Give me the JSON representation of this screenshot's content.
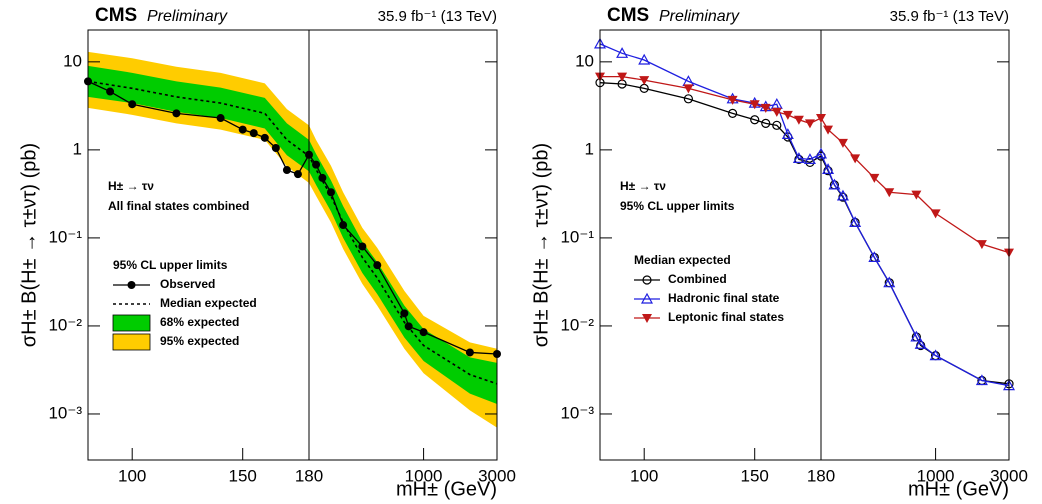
{
  "chart_data": [
    {
      "type": "line",
      "label": "CMS",
      "sublabel": "Preliminary",
      "lumi": "35.9 fb⁻¹ (13 TeV)",
      "ylabel": "σH± B(H± → τ±ντ) (pb)",
      "xlabel": "mH± (GeV)",
      "annotations": [
        "H± → τν",
        "All final states combined"
      ],
      "legend_title": "95% CL upper limits",
      "xlim": [
        80,
        3000
      ],
      "xbreak": 180,
      "xscale": "linear-log",
      "xticks": [
        100,
        150,
        180,
        1000,
        3000
      ],
      "ylim": [
        0.0003,
        23
      ],
      "yscale": "log",
      "yticks": [
        {
          "value": 0.001,
          "label": "10⁻³"
        },
        {
          "value": 0.01,
          "label": "10⁻²"
        },
        {
          "value": 0.1,
          "label": "10⁻¹"
        },
        1,
        10
      ],
      "series": [
        {
          "name": "Observed",
          "color": "#000000",
          "marker": "circle",
          "dash": false,
          "x": [
            80,
            90,
            100,
            120,
            140,
            150,
            155,
            160,
            165,
            170,
            175,
            180,
            200,
            220,
            250,
            300,
            400,
            500,
            750,
            800,
            1000,
            2000,
            3000
          ],
          "values": [
            6,
            4.6,
            3.3,
            2.6,
            2.3,
            1.7,
            1.55,
            1.37,
            1.05,
            0.59,
            0.53,
            0.88,
            0.68,
            0.48,
            0.33,
            0.14,
            0.08,
            0.049,
            0.0139,
            0.0099,
            0.0085,
            0.005,
            0.0048
          ]
        },
        {
          "name": "Median expected",
          "color": "#000000",
          "marker": "none",
          "dash": true,
          "x": [
            80,
            100,
            120,
            140,
            160,
            170,
            180,
            200,
            250,
            300,
            400,
            500,
            750,
            1000,
            2000,
            3000
          ],
          "values": [
            6,
            5,
            4,
            3.4,
            2.6,
            1.3,
            0.85,
            0.6,
            0.3,
            0.15,
            0.06,
            0.035,
            0.011,
            0.006,
            0.0028,
            0.0022
          ]
        }
      ],
      "bands": [
        {
          "name": "68% expected",
          "color": "#00cc00",
          "x": [
            80,
            100,
            120,
            140,
            160,
            170,
            180,
            200,
            250,
            300,
            400,
            500,
            750,
            1000,
            2000,
            3000
          ],
          "low": [
            4,
            3.4,
            2.7,
            2.3,
            1.75,
            0.87,
            0.57,
            0.4,
            0.2,
            0.1,
            0.04,
            0.023,
            0.0074,
            0.004,
            0.0017,
            0.0013
          ],
          "high": [
            9,
            7.5,
            6,
            5.1,
            3.9,
            2,
            1.3,
            0.9,
            0.45,
            0.23,
            0.09,
            0.053,
            0.017,
            0.0092,
            0.0044,
            0.0038
          ]
        },
        {
          "name": "95% expected",
          "color": "#ffcc00",
          "x": [
            80,
            100,
            120,
            140,
            160,
            170,
            180,
            200,
            250,
            300,
            400,
            500,
            750,
            1000,
            2000,
            3000
          ],
          "low": [
            3,
            2.5,
            2,
            1.7,
            1.3,
            0.65,
            0.42,
            0.3,
            0.15,
            0.075,
            0.03,
            0.017,
            0.0055,
            0.0029,
            0.0011,
            0.0007
          ],
          "high": [
            13,
            11,
            8.8,
            7.5,
            5.7,
            2.9,
            1.9,
            1.3,
            0.66,
            0.33,
            0.13,
            0.077,
            0.025,
            0.013,
            0.0065,
            0.0055
          ]
        }
      ]
    },
    {
      "type": "line",
      "label": "CMS",
      "sublabel": "Preliminary",
      "lumi": "35.9 fb⁻¹ (13 TeV)",
      "ylabel": "σH± B(H± → τ±ντ) (pb)",
      "xlabel": "mH± (GeV)",
      "annotations": [
        "H± → τν",
        "95% CL upper limits"
      ],
      "legend_title": "Median expected",
      "xlim": [
        80,
        3000
      ],
      "xbreak": 180,
      "xscale": "linear-log",
      "xticks": [
        100,
        150,
        180,
        1000,
        3000
      ],
      "ylim": [
        0.0003,
        23
      ],
      "yscale": "log",
      "yticks": [
        {
          "value": 0.001,
          "label": "10⁻³"
        },
        {
          "value": 0.01,
          "label": "10⁻²"
        },
        {
          "value": 0.1,
          "label": "10⁻¹"
        },
        1,
        10
      ],
      "series": [
        {
          "name": "Combined",
          "color": "#000000",
          "marker": "open-circle",
          "dash": false,
          "x": [
            80,
            90,
            100,
            120,
            140,
            150,
            155,
            160,
            165,
            170,
            175,
            180,
            200,
            220,
            250,
            300,
            400,
            500,
            750,
            800,
            1000,
            2000,
            3000
          ],
          "values": [
            5.8,
            5.6,
            5,
            3.8,
            2.6,
            2.2,
            2,
            1.9,
            1.4,
            0.78,
            0.72,
            0.85,
            0.58,
            0.4,
            0.29,
            0.15,
            0.06,
            0.031,
            0.0075,
            0.006,
            0.0046,
            0.0024,
            0.0022
          ]
        },
        {
          "name": "Hadronic final state",
          "color": "#1f1fe0",
          "marker": "open-triangle-up",
          "dash": false,
          "x": [
            80,
            90,
            100,
            120,
            140,
            150,
            155,
            160,
            165,
            170,
            175,
            180,
            200,
            220,
            250,
            300,
            400,
            500,
            750,
            800,
            1000,
            2000,
            3000
          ],
          "values": [
            16,
            12.5,
            10.5,
            6,
            3.8,
            3.4,
            3.1,
            3.3,
            1.5,
            0.8,
            0.78,
            0.9,
            0.6,
            0.4,
            0.3,
            0.15,
            0.06,
            0.031,
            0.0075,
            0.0062,
            0.0046,
            0.0024,
            0.0021
          ]
        },
        {
          "name": "Leptonic final states",
          "color": "#c01818",
          "marker": "triangle-down",
          "dash": false,
          "x": [
            80,
            90,
            100,
            120,
            140,
            150,
            155,
            160,
            165,
            170,
            175,
            180,
            200,
            250,
            300,
            400,
            500,
            750,
            1000,
            2000,
            3000
          ],
          "values": [
            6.8,
            6.8,
            6.2,
            5,
            3.7,
            3.3,
            3,
            2.7,
            2.5,
            2.2,
            2,
            2.3,
            1.7,
            1.2,
            0.8,
            0.48,
            0.33,
            0.31,
            0.19,
            0.085,
            0.068
          ]
        }
      ],
      "bands": []
    }
  ]
}
